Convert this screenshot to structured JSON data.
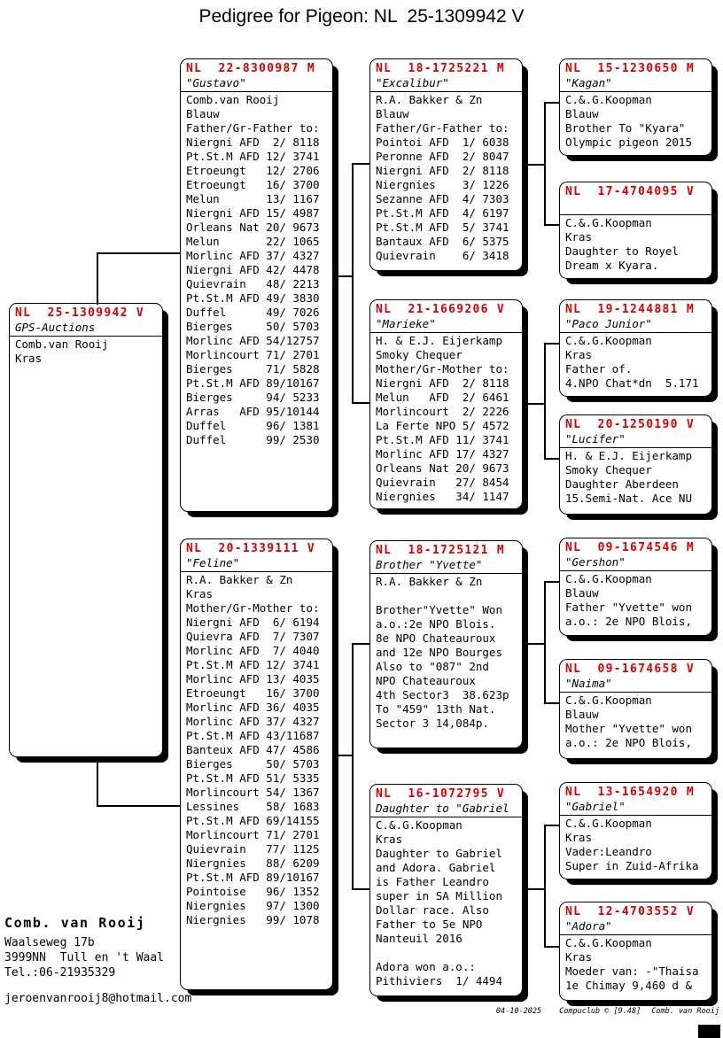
{
  "title": "Pedigree for Pigeon: NL  25-1309942 V",
  "accent_color": "#d90000",
  "boxes": {
    "main": {
      "ring": "NL  25-1309942 V",
      "name": "GPS-Auctions",
      "lines": [
        "Comb.van Rooij",
        "Kras"
      ]
    },
    "gustavo": {
      "ring": "NL  22-8300987 M",
      "name": "\"Gustavo\"",
      "lines": [
        "Comb.van Rooij",
        "Blauw",
        "Father/Gr-Father to:",
        "Niergni AFD  2/ 8118",
        "Pt.St.M AFD 12/ 3741",
        "Etroeungt   12/ 2706",
        "Etroeungt   16/ 3700",
        "Melun       13/ 1167",
        "Niergni AFD 15/ 4987",
        "Orleans Nat 20/ 9673",
        "Melun       22/ 1065",
        "Morlinc AFD 37/ 4327",
        "Niergni AFD 42/ 4478",
        "Quievrain   48/ 2213",
        "Pt.St.M AFD 49/ 3830",
        "Duffel      49/ 7026",
        "Bierges     50/ 5703",
        "Morlinc AFD 54/12757",
        "Morlincourt 71/ 2701",
        "Bierges     71/ 5828",
        "Pt.St.M AFD 89/10167",
        "Bierges     94/ 5233",
        "Arras   AFD 95/10144",
        "Duffel      96/ 1381",
        "Duffel      99/ 2530"
      ]
    },
    "feline": {
      "ring": "NL  20-1339111 V",
      "name": "\"Feline\"",
      "lines": [
        "R.A. Bakker & Zn",
        "Kras",
        "Mother/Gr-Mother to:",
        "Niergni AFD  6/ 6194",
        "Quievra AFD  7/ 7307",
        "Morlinc AFD  7/ 4040",
        "Pt.St.M AFD 12/ 3741",
        "Morlinc AFD 13/ 4035",
        "Etroeungt   16/ 3700",
        "Morlinc AFD 36/ 4035",
        "Morlinc AFD 37/ 4327",
        "Pt.St.M AFD 43/11687",
        "Banteux AFD 47/ 4586",
        "Bierges     50/ 5703",
        "Pt.St.M AFD 51/ 5335",
        "Morlincourt 54/ 1367",
        "Lessines    58/ 1683",
        "Pt.St.M AFD 69/14155",
        "Morlincourt 71/ 2701",
        "Quievrain   77/ 1125",
        "Niergnies   88/ 6209",
        "Pt.St.M AFD 89/10167",
        "Pointoise   96/ 1352",
        "Niergnies   97/ 1300",
        "Niergnies   99/ 1078"
      ]
    },
    "excalibur": {
      "ring": "NL  18-1725221 M",
      "name": "\"Excalibur\"",
      "lines": [
        "R.A. Bakker & Zn",
        "Blauw",
        "Father/Gr-Father to:",
        "Pointoi AFD  1/ 6038",
        "Peronne AFD  2/ 8047",
        "Niergni AFD  2/ 8118",
        "Niergnies    3/ 1226",
        "Sezanne AFD  4/ 7303",
        "Pt.St.M AFD  4/ 6197",
        "Pt.St.M AFD  5/ 3741",
        "Bantaux AFD  6/ 5375",
        "Quievrain    6/ 3418"
      ]
    },
    "marieke": {
      "ring": "NL  21-1669206 V",
      "name": "\"Marieke\"",
      "lines": [
        "H. & E.J. Eijerkamp",
        "Smoky Chequer",
        "Mother/Gr-Mother to:",
        "Niergni AFD  2/ 8118",
        "Melun   AFD  2/ 6461",
        "Morlincourt  2/ 2226",
        "La Ferte NPO 5/ 4572",
        "Pt.St.M AFD 11/ 3741",
        "Morlinc AFD 17/ 4327",
        "Orleans Nat 20/ 9673",
        "Quievrain   27/ 8454",
        "Niergnies   34/ 1147"
      ]
    },
    "yvette": {
      "ring": "NL  18-1725121 M",
      "name": "Brother \"Yvette\"",
      "lines": [
        "R.A. Bakker & Zn",
        "",
        "Brother\"Yvette\" Won",
        "a.o.:2e NPO Blois.",
        "8e NPO Chateauroux",
        "and 12e NPO Bourges",
        "Also to \"087\" 2nd",
        "NPO Chateauroux",
        "4th Sector3  38.623p",
        "To \"459\" 13th Nat.",
        "Sector 3 14,084p."
      ]
    },
    "dgabriel": {
      "ring": "NL  16-1072795 V",
      "name": "Daughter to \"Gabriel",
      "lines": [
        "C.&.G.Koopman",
        "Kras",
        "Daughter to Gabriel",
        "and Adora. Gabriel",
        "is Father Leandro",
        "super in SA Million",
        "Dollar race. Also",
        "Father to 5e NPO",
        "Nanteuil 2016",
        "",
        "Adora won a.o.:",
        "Pithiviers  1/ 4494"
      ]
    },
    "kagan": {
      "ring": "NL  15-1230650 M",
      "name": "\"Kagan\"",
      "lines": [
        "C.&.G.Koopman",
        "Blauw",
        "Brother To \"Kyara\"",
        "Olympic pigeon 2015"
      ]
    },
    "k17": {
      "ring": "NL  17-4704095 V",
      "name": "",
      "lines": [
        "C.&.G.Koopman",
        "Kras",
        "Daughter to Royel",
        "Dream x Kyara."
      ]
    },
    "paco": {
      "ring": "NL  19-1244881 M",
      "name": "\"Paco Junior\"",
      "lines": [
        "C.&.G.Koopman",
        "Kras",
        "Father of.",
        "4.NPO Chat*dn  5.171"
      ]
    },
    "lucifer": {
      "ring": "NL  20-1250190 V",
      "name": "\"Lucifer\"",
      "lines": [
        "H. & E.J. Eijerkamp",
        "Smoky Chequer",
        "Daughter Aberdeen",
        "15.Semi-Nat. Ace NU"
      ]
    },
    "gershon": {
      "ring": "NL  09-1674546 M",
      "name": "\"Gershon\"",
      "lines": [
        "C.&.G.Koopman",
        "Blauw",
        "Father \"Yvette\" won",
        "a.o.: 2e NPO Blois,"
      ]
    },
    "naima": {
      "ring": "NL  09-1674658 V",
      "name": "\"Naima\"",
      "lines": [
        "C.&.G.Koopman",
        "Blauw",
        "Mother \"Yvette\" won",
        "a.o.: 2e NPO Blois,"
      ]
    },
    "gabriel": {
      "ring": "NL  13-1654920 M",
      "name": "\"Gabriel\"",
      "lines": [
        "C.&.G.Koopman",
        "Kras",
        "Vader:Leandro",
        "Super in Zuid-Afrika"
      ]
    },
    "adora": {
      "ring": "NL  12-4703552 V",
      "name": "\"Adora\"",
      "lines": [
        "C.&.G.Koopman",
        "Kras",
        "Moeder van: -\"Thaisa",
        "1e Chimay 9,460 d &"
      ]
    }
  },
  "contact": {
    "name": "Comb. van Rooij",
    "address_line1": "Waalseweg 17b",
    "address_line2": "3999NN  Tull en 't Waal",
    "phone": "Tel.:06-21935329",
    "email": "jeroenvanrooij8@hotmail.com"
  },
  "footer": {
    "date": "04-10-2025",
    "program": "Compuclub © [9.48]",
    "owner": "Comb. van Rooij"
  }
}
